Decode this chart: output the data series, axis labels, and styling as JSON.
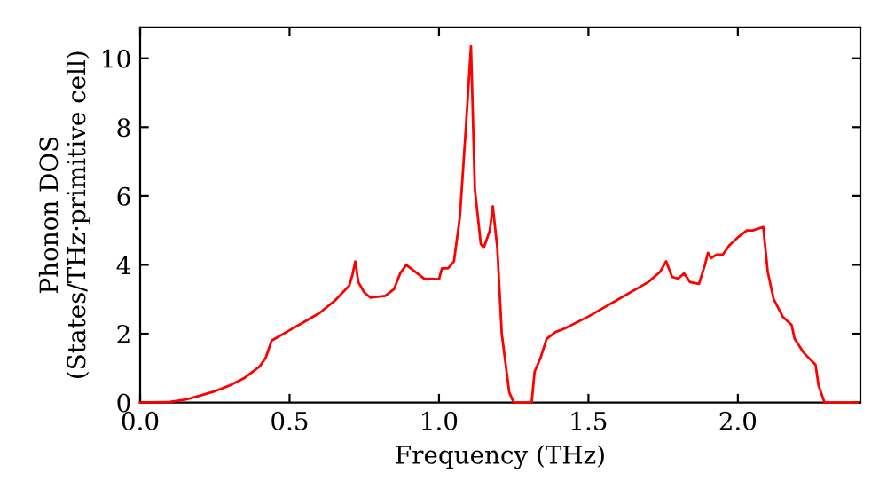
{
  "chart_data": {
    "type": "line",
    "xlabel": "Frequency (THz)",
    "ylabel": "Phonon DOS\n(States/THz·primitive cell)",
    "xlim": [
      0,
      2.41
    ],
    "ylim": [
      0,
      10.9
    ],
    "xticks": [
      {
        "value": 0,
        "label": "0.0"
      },
      {
        "value": 0.5,
        "label": "0.5"
      },
      {
        "value": 1,
        "label": "1.0"
      },
      {
        "value": 1.5,
        "label": "1.5"
      },
      {
        "value": 2,
        "label": "2.0"
      }
    ],
    "yticks": [
      0,
      2,
      4,
      6,
      8,
      10
    ],
    "grid": false,
    "legend": false,
    "marker": "none",
    "line_style": "solid",
    "series": [
      {
        "color": "#ff0000",
        "x": [
          0,
          0.1,
          0.15,
          0.2,
          0.25,
          0.3,
          0.35,
          0.4,
          0.42,
          0.44,
          0.47,
          0.5,
          0.55,
          0.6,
          0.65,
          0.7,
          0.71,
          0.72,
          0.73,
          0.75,
          0.77,
          0.82,
          0.85,
          0.87,
          0.89,
          0.92,
          0.95,
          1.0,
          1.01,
          1.03,
          1.05,
          1.07,
          1.09,
          1.107,
          1.12,
          1.14,
          1.15,
          1.17,
          1.18,
          1.195,
          1.21,
          1.235,
          1.25,
          1.31,
          1.32,
          1.34,
          1.36,
          1.39,
          1.42,
          1.5,
          1.6,
          1.7,
          1.74,
          1.76,
          1.78,
          1.8,
          1.82,
          1.84,
          1.87,
          1.89,
          1.9,
          1.91,
          1.93,
          1.95,
          1.97,
          2.0,
          2.03,
          2.05,
          2.085,
          2.1,
          2.12,
          2.15,
          2.18,
          2.19,
          2.22,
          2.26,
          2.27,
          2.29,
          2.4
        ],
        "values": [
          0,
          0.02,
          0.08,
          0.2,
          0.33,
          0.5,
          0.72,
          1.05,
          1.3,
          1.8,
          1.95,
          2.1,
          2.35,
          2.6,
          2.95,
          3.4,
          3.7,
          4.1,
          3.5,
          3.2,
          3.05,
          3.1,
          3.3,
          3.75,
          4.0,
          3.8,
          3.6,
          3.58,
          3.9,
          3.9,
          4.1,
          5.4,
          8.0,
          10.35,
          6.2,
          4.6,
          4.5,
          5.0,
          5.7,
          4.5,
          2.0,
          0.3,
          0,
          0,
          0.9,
          1.3,
          1.85,
          2.05,
          2.15,
          2.5,
          3.0,
          3.5,
          3.8,
          4.1,
          3.65,
          3.6,
          3.75,
          3.5,
          3.45,
          4.0,
          4.35,
          4.2,
          4.3,
          4.3,
          4.55,
          4.8,
          5.0,
          5.0,
          5.1,
          3.8,
          3.0,
          2.5,
          2.25,
          1.85,
          1.45,
          1.1,
          0.5,
          0,
          0
        ]
      }
    ]
  }
}
